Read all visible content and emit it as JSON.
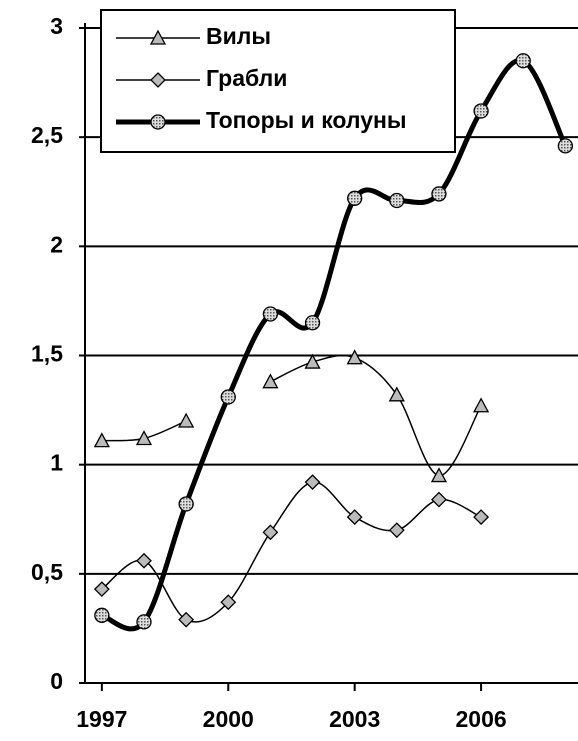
{
  "chart_data": {
    "type": "line",
    "x": [
      1997,
      1998,
      1999,
      2000,
      2001,
      2002,
      2003,
      2004,
      2005,
      2006,
      2007,
      2008
    ],
    "series": [
      {
        "name": "Вилы",
        "color": "#000000",
        "marker": "triangle",
        "values": [
          1.11,
          1.12,
          1.2,
          null,
          1.38,
          1.47,
          1.49,
          1.32,
          0.95,
          1.27,
          null,
          null
        ]
      },
      {
        "name": "Грабли",
        "color": "#000000",
        "marker": "diamond",
        "values": [
          0.43,
          0.56,
          0.29,
          0.37,
          0.69,
          0.92,
          0.76,
          0.7,
          0.84,
          0.76,
          null,
          null
        ]
      },
      {
        "name": "Топоры и колуны",
        "color": "#000000",
        "marker": "circle",
        "values": [
          0.31,
          0.28,
          0.82,
          1.31,
          1.69,
          1.65,
          2.22,
          2.21,
          2.24,
          2.62,
          2.85,
          2.46
        ]
      }
    ],
    "xlim": [
      1996.6,
      2008.3
    ],
    "xticks": [
      1997,
      2000,
      2003,
      2006
    ],
    "ylim": [
      0,
      3
    ],
    "yticks": [
      0,
      {
        "value": 0.5,
        "label": "0,5"
      },
      1,
      {
        "value": 1.5,
        "label": "1,5"
      },
      2,
      {
        "value": 2.5,
        "label": "2,5"
      },
      3
    ],
    "grid": true,
    "legend": "top-left"
  }
}
